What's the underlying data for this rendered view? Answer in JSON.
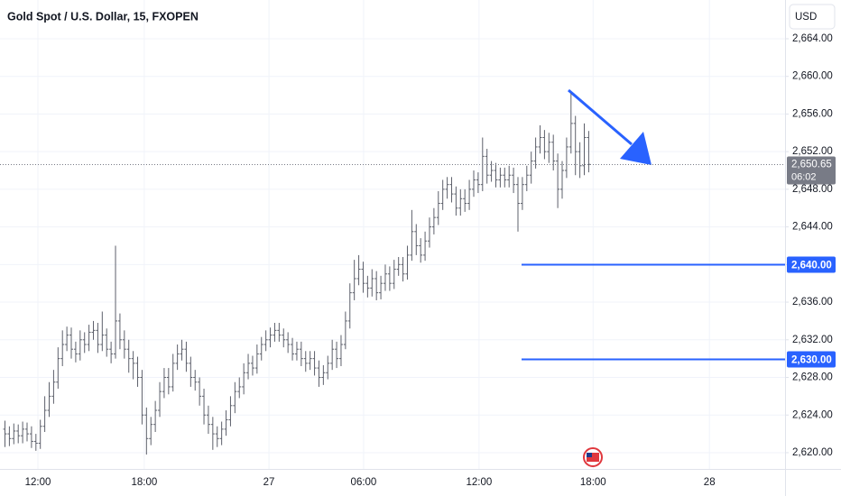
{
  "chart_data": {
    "type": "ohlc",
    "title": "Gold Spot / U.S. Dollar, 15, FXOPEN",
    "currency": "USD",
    "series": {
      "color": "#5d606b",
      "open": [
        2622.5,
        2622.0,
        2621.5,
        2622.3,
        2621.8,
        2622.5,
        2622.0,
        2621.2,
        2621.0,
        2622.8,
        2624.5,
        2626.0,
        2627.5,
        2630.0,
        2631.5,
        2632.5,
        2631.0,
        2630.5,
        2632.0,
        2631.5,
        2632.8,
        2633.0,
        2631.5,
        2632.5,
        2631.0,
        2630.5,
        2634.0,
        2632.0,
        2631.0,
        2630.0,
        2629.5,
        2628.0,
        2624.0,
        2621.5,
        2623.0,
        2624.5,
        2626.5,
        2628.0,
        2627.0,
        2629.5,
        2630.5,
        2631.0,
        2629.5,
        2628.0,
        2627.5,
        2626.0,
        2624.0,
        2623.0,
        2622.0,
        2621.5,
        2622.5,
        2623.5,
        2625.0,
        2626.5,
        2627.0,
        2628.5,
        2629.5,
        2629.0,
        2630.5,
        2631.5,
        2632.0,
        2632.5,
        2633.0,
        2632.5,
        2632.0,
        2631.5,
        2630.5,
        2631.0,
        2630.0,
        2629.5,
        2630.0,
        2629.0,
        2628.0,
        2628.5,
        2629.5,
        2631.0,
        2630.0,
        2631.5,
        2634.0,
        2637.0,
        2638.5,
        2639.5,
        2638.0,
        2637.5,
        2638.5,
        2637.0,
        2638.0,
        2639.0,
        2638.0,
        2639.5,
        2640.0,
        2639.0,
        2641.0,
        2643.5,
        2642.0,
        2641.0,
        2642.5,
        2644.0,
        2645.0,
        2646.5,
        2648.0,
        2648.5,
        2647.5,
        2646.0,
        2647.0,
        2646.5,
        2648.0,
        2649.0,
        2648.5,
        2651.5,
        2649.5,
        2650.0,
        2649.0,
        2649.5,
        2649.0,
        2649.5,
        2648.5,
        2646.5,
        2648.5,
        2649.5,
        2651.0,
        2652.5,
        2653.5,
        2652.0,
        2653.0,
        2651.0,
        2648.0,
        2650.0,
        2652.5,
        2655.0,
        2652.0,
        2650.5,
        2653.5
      ],
      "high": [
        2623.4,
        2622.8,
        2623.1,
        2623.0,
        2623.3,
        2623.2,
        2622.8,
        2622.0,
        2623.5,
        2626.0,
        2627.5,
        2628.8,
        2631.2,
        2633.0,
        2633.4,
        2633.3,
        2631.8,
        2633.0,
        2632.8,
        2633.6,
        2634.0,
        2633.8,
        2635.0,
        2633.2,
        2631.8,
        2642.0,
        2634.8,
        2633.0,
        2632.0,
        2630.8,
        2630.2,
        2628.8,
        2624.8,
        2623.8,
        2625.5,
        2627.5,
        2629.0,
        2629.0,
        2630.5,
        2631.5,
        2632.0,
        2631.8,
        2630.2,
        2628.8,
        2628.0,
        2626.8,
        2625.0,
        2623.8,
        2622.8,
        2623.3,
        2624.5,
        2626.0,
        2627.5,
        2628.0,
        2629.5,
        2630.5,
        2630.3,
        2631.5,
        2632.3,
        2633.0,
        2633.3,
        2633.8,
        2633.8,
        2633.2,
        2632.8,
        2632.2,
        2631.8,
        2631.8,
        2630.8,
        2630.8,
        2630.8,
        2629.8,
        2629.3,
        2630.3,
        2632.0,
        2631.8,
        2632.5,
        2635.0,
        2638.0,
        2640.5,
        2641.0,
        2640.3,
        2638.8,
        2639.5,
        2639.3,
        2638.8,
        2640.0,
        2639.8,
        2640.5,
        2640.8,
        2640.8,
        2642.0,
        2645.8,
        2644.3,
        2642.8,
        2643.5,
        2645.0,
        2646.0,
        2647.8,
        2649.0,
        2649.3,
        2649.3,
        2648.3,
        2648.0,
        2648.0,
        2649.0,
        2650.0,
        2649.8,
        2653.5,
        2652.3,
        2651.0,
        2650.8,
        2650.3,
        2650.3,
        2650.5,
        2650.3,
        2649.3,
        2649.3,
        2650.5,
        2652.0,
        2653.5,
        2654.8,
        2654.3,
        2654.0,
        2653.8,
        2651.8,
        2651.0,
        2653.5,
        2658.2,
        2655.8,
        2653.0,
        2655.0,
        2654.2
      ],
      "low": [
        2620.6,
        2620.7,
        2620.9,
        2621.0,
        2621.0,
        2621.2,
        2620.5,
        2620.2,
        2620.4,
        2622.2,
        2623.8,
        2625.2,
        2626.8,
        2629.2,
        2630.8,
        2630.0,
        2629.6,
        2629.8,
        2630.6,
        2630.8,
        2632.0,
        2630.6,
        2630.8,
        2630.2,
        2629.5,
        2630.0,
        2631.0,
        2630.0,
        2628.5,
        2627.8,
        2627.0,
        2623.0,
        2619.8,
        2620.8,
        2622.2,
        2623.8,
        2625.8,
        2626.2,
        2626.5,
        2628.8,
        2629.8,
        2628.6,
        2627.0,
        2626.6,
        2625.0,
        2623.0,
        2622.0,
        2620.3,
        2620.6,
        2620.8,
        2621.8,
        2622.8,
        2624.2,
        2625.8,
        2626.2,
        2627.8,
        2628.2,
        2628.4,
        2629.8,
        2630.8,
        2631.2,
        2631.8,
        2631.8,
        2631.2,
        2630.6,
        2629.8,
        2629.8,
        2629.2,
        2628.6,
        2628.8,
        2628.2,
        2627.0,
        2627.2,
        2627.8,
        2628.8,
        2629.0,
        2629.2,
        2631.0,
        2633.2,
        2636.2,
        2637.8,
        2637.0,
        2636.5,
        2636.6,
        2636.2,
        2636.3,
        2637.2,
        2637.2,
        2637.4,
        2638.8,
        2638.2,
        2638.4,
        2640.4,
        2641.0,
        2640.2,
        2640.4,
        2641.8,
        2643.2,
        2644.2,
        2645.8,
        2647.0,
        2646.6,
        2645.2,
        2645.2,
        2645.6,
        2645.8,
        2647.2,
        2647.6,
        2647.8,
        2648.6,
        2648.8,
        2648.2,
        2648.2,
        2648.2,
        2648.2,
        2647.6,
        2643.5,
        2645.8,
        2647.8,
        2648.6,
        2650.2,
        2651.8,
        2651.2,
        2650.8,
        2650.0,
        2646.0,
        2647.0,
        2649.2,
        2651.8,
        2649.5,
        2649.2,
        2649.5,
        2649.8
      ],
      "close": [
        2622.0,
        2621.5,
        2622.3,
        2621.8,
        2622.5,
        2622.0,
        2621.2,
        2621.0,
        2622.8,
        2624.5,
        2626.0,
        2627.5,
        2630.0,
        2631.5,
        2632.5,
        2631.0,
        2630.5,
        2632.0,
        2631.5,
        2632.8,
        2633.0,
        2631.5,
        2632.5,
        2631.0,
        2630.5,
        2634.0,
        2632.0,
        2631.0,
        2630.0,
        2629.5,
        2628.0,
        2624.0,
        2621.5,
        2623.0,
        2624.5,
        2626.5,
        2628.0,
        2627.0,
        2629.5,
        2630.5,
        2631.0,
        2629.5,
        2628.0,
        2627.5,
        2626.0,
        2624.0,
        2623.0,
        2622.0,
        2621.5,
        2622.5,
        2623.5,
        2625.0,
        2626.5,
        2627.0,
        2628.5,
        2629.5,
        2629.0,
        2630.5,
        2631.5,
        2632.0,
        2632.5,
        2633.0,
        2632.5,
        2632.0,
        2631.5,
        2630.5,
        2631.0,
        2630.0,
        2629.5,
        2630.0,
        2629.0,
        2628.0,
        2628.5,
        2629.5,
        2631.0,
        2630.0,
        2631.5,
        2634.0,
        2637.0,
        2638.5,
        2639.5,
        2638.0,
        2637.5,
        2638.5,
        2637.0,
        2638.0,
        2639.0,
        2638.0,
        2639.5,
        2640.0,
        2639.0,
        2641.0,
        2643.5,
        2642.0,
        2641.0,
        2642.5,
        2644.0,
        2645.0,
        2646.5,
        2648.0,
        2648.5,
        2647.5,
        2646.0,
        2647.0,
        2646.5,
        2648.0,
        2649.0,
        2648.5,
        2651.5,
        2649.5,
        2650.0,
        2649.0,
        2649.5,
        2649.0,
        2649.5,
        2648.5,
        2646.5,
        2648.5,
        2649.5,
        2651.0,
        2652.5,
        2653.5,
        2652.0,
        2653.0,
        2651.0,
        2648.0,
        2650.0,
        2652.5,
        2655.0,
        2652.0,
        2650.5,
        2653.5,
        2650.65
      ]
    },
    "ylim": [
      2618.27,
      2668.12
    ],
    "yticks": [
      {
        "value": 2620,
        "label": "2,620.00"
      },
      {
        "value": 2624,
        "label": "2,624.00"
      },
      {
        "value": 2628,
        "label": "2,628.00"
      },
      {
        "value": 2632,
        "label": "2,632.00"
      },
      {
        "value": 2636,
        "label": "2,636.00"
      },
      {
        "value": 2640,
        "label": "2,640.00"
      },
      {
        "value": 2644,
        "label": "2,644.00"
      },
      {
        "value": 2648,
        "label": "2,648.00"
      },
      {
        "value": 2652,
        "label": "2,652.00"
      },
      {
        "value": 2656,
        "label": "2,656.00"
      },
      {
        "value": 2660,
        "label": "2,660.00"
      },
      {
        "value": 2664,
        "label": "2,664.00"
      }
    ],
    "xlim": [
      -1.02,
      176.5
    ],
    "xticks": [
      {
        "value": 7.55,
        "label": "12:00"
      },
      {
        "value": 31.6,
        "label": "18:00"
      },
      {
        "value": 59.8,
        "label": "27"
      },
      {
        "value": 81.2,
        "label": "06:00"
      },
      {
        "value": 107.3,
        "label": "12:00"
      },
      {
        "value": 133.1,
        "label": "18:00"
      },
      {
        "value": 159.4,
        "label": "28"
      }
    ],
    "grid": true,
    "last_price": {
      "value": 2650.65,
      "label": "2,650.65",
      "countdown": "06:02",
      "color": "#787b86"
    },
    "levels": [
      {
        "value": 2640,
        "label": "2,640.00",
        "color": "#2962ff"
      },
      {
        "value": 2630,
        "label": "2,630.00",
        "color": "#2962ff"
      }
    ]
  }
}
